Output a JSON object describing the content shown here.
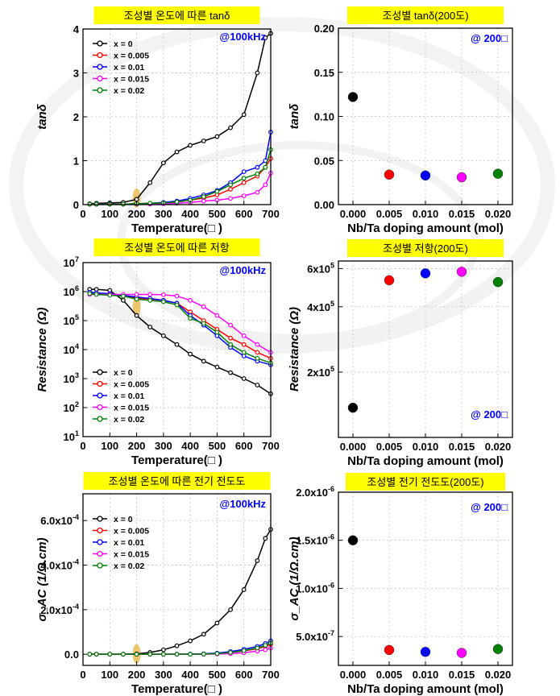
{
  "colors": {
    "x0": "#000000",
    "x005": "#ff0000",
    "x01": "#0000ff",
    "x015": "#ff00ff",
    "x02": "#008000",
    "title_bg": "#ffff00",
    "annot": "#0000ff",
    "highlight": "#e8b84a"
  },
  "chart_data": [
    {
      "type": "line",
      "title": "조성별 온도에 따른 tanδ",
      "annotation": "@100kHz",
      "xlabel": "Temperature(□ )",
      "ylabel": "tanδ",
      "xlim": [
        0,
        700
      ],
      "ylim": [
        0,
        4
      ],
      "xticks": [
        0,
        100,
        200,
        300,
        400,
        500,
        600,
        700
      ],
      "yticks": [
        0,
        1,
        2,
        3,
        4
      ],
      "ytick_labels": [
        "0",
        "1",
        "2",
        "3",
        "4"
      ],
      "yscale": "linear",
      "legend": "top-left",
      "x": [
        25,
        50,
        100,
        150,
        200,
        250,
        300,
        350,
        400,
        450,
        500,
        550,
        600,
        650,
        680,
        700
      ],
      "series": [
        {
          "name": "x = 0",
          "color": "#000000",
          "values": [
            0.02,
            0.03,
            0.04,
            0.05,
            0.12,
            0.5,
            0.95,
            1.2,
            1.35,
            1.45,
            1.55,
            1.75,
            2.05,
            3.0,
            3.8,
            3.9
          ]
        },
        {
          "name": "x = 0.005",
          "color": "#ff0000",
          "values": [
            0.01,
            0.01,
            0.01,
            0.01,
            0.02,
            0.03,
            0.04,
            0.06,
            0.1,
            0.15,
            0.22,
            0.35,
            0.5,
            0.65,
            0.85,
            1.05
          ]
        },
        {
          "name": "x = 0.01",
          "color": "#0000ff",
          "values": [
            0.01,
            0.01,
            0.01,
            0.01,
            0.02,
            0.03,
            0.05,
            0.08,
            0.14,
            0.22,
            0.32,
            0.5,
            0.75,
            0.85,
            1.0,
            1.65
          ]
        },
        {
          "name": "x = 0.015",
          "color": "#ff00ff",
          "values": [
            0.01,
            0.01,
            0.01,
            0.01,
            0.01,
            0.01,
            0.02,
            0.03,
            0.05,
            0.08,
            0.1,
            0.14,
            0.2,
            0.28,
            0.45,
            0.72
          ]
        },
        {
          "name": "x = 0.02",
          "color": "#008000",
          "values": [
            0.01,
            0.01,
            0.01,
            0.01,
            0.02,
            0.03,
            0.04,
            0.06,
            0.1,
            0.18,
            0.3,
            0.45,
            0.6,
            0.7,
            0.85,
            1.25
          ]
        }
      ]
    },
    {
      "type": "scatter",
      "title": "조성별 tanδ(200도)",
      "annotation": "@ 200□",
      "xlabel": "Nb/Ta doping amount (mol)",
      "ylabel": "tanδ",
      "xlim": [
        -0.002,
        0.022
      ],
      "ylim": [
        0,
        0.2
      ],
      "xticks": [
        0,
        0.005,
        0.01,
        0.015,
        0.02
      ],
      "xtick_labels": [
        "0.000",
        "0.005",
        "0.010",
        "0.015",
        "0.020"
      ],
      "yticks": [
        0,
        0.05,
        0.1,
        0.15,
        0.2
      ],
      "ytick_labels": [
        "0.00",
        "0.05",
        "0.10",
        "0.15",
        "0.20"
      ],
      "yscale": "linear",
      "x": [
        0,
        0.005,
        0.01,
        0.015,
        0.02
      ],
      "values": [
        0.122,
        0.034,
        0.033,
        0.031,
        0.035
      ],
      "colors": [
        "#000000",
        "#ff0000",
        "#0000ff",
        "#ff00ff",
        "#008000"
      ]
    },
    {
      "type": "line",
      "title": "조성별 온도에 따른 저항",
      "annotation": "@100kHz",
      "xlabel": "Temperature(□ )",
      "ylabel": "Resistance (Ω)",
      "xlim": [
        0,
        700
      ],
      "ylim": [
        10,
        10000000
      ],
      "xticks": [
        0,
        100,
        200,
        300,
        400,
        500,
        600,
        700
      ],
      "yticks": [
        10,
        100,
        1000,
        10000,
        100000,
        1000000,
        10000000
      ],
      "ytick_labels": [
        "10^1",
        "10^2",
        "10^3",
        "10^4",
        "10^5",
        "10^6",
        "10^7"
      ],
      "yscale": "log",
      "legend": "bottom-left",
      "x": [
        25,
        50,
        100,
        150,
        200,
        250,
        300,
        350,
        400,
        450,
        500,
        550,
        600,
        650,
        700
      ],
      "series": [
        {
          "name": "x = 0",
          "color": "#000000",
          "values": [
            1200000,
            1200000,
            1100000,
            500000,
            150000,
            60000,
            30000,
            15000,
            7000,
            4000,
            2500,
            1600,
            1000,
            600,
            300
          ]
        },
        {
          "name": "x = 0.005",
          "color": "#ff0000",
          "values": [
            900000,
            850000,
            800000,
            700000,
            600000,
            550000,
            500000,
            400000,
            200000,
            100000,
            50000,
            25000,
            15000,
            8000,
            5000
          ]
        },
        {
          "name": "x = 0.01",
          "color": "#0000ff",
          "values": [
            950000,
            900000,
            850000,
            750000,
            650000,
            580000,
            500000,
            400000,
            150000,
            70000,
            30000,
            12000,
            6000,
            4000,
            3000
          ]
        },
        {
          "name": "x = 0.015",
          "color": "#ff00ff",
          "values": [
            800000,
            800000,
            800000,
            800000,
            800000,
            800000,
            780000,
            700000,
            500000,
            300000,
            150000,
            70000,
            30000,
            15000,
            8000
          ]
        },
        {
          "name": "x = 0.02",
          "color": "#008000",
          "values": [
            850000,
            800000,
            750000,
            700000,
            550000,
            500000,
            450000,
            350000,
            120000,
            80000,
            40000,
            15000,
            8000,
            5000,
            3500
          ]
        }
      ]
    },
    {
      "type": "scatter",
      "title": "조성별 저항(200도)",
      "annotation": "@ 200□",
      "xlabel": "Nb/Ta doping amount (mol)",
      "ylabel": "Resistance (Ω)",
      "xlim": [
        -0.002,
        0.022
      ],
      "ylim": [
        100000,
        650000
      ],
      "xticks": [
        0,
        0.005,
        0.01,
        0.015,
        0.02
      ],
      "xtick_labels": [
        "0.000",
        "0.005",
        "0.010",
        "0.015",
        "0.020"
      ],
      "yticks": [
        200000,
        400000,
        600000
      ],
      "ytick_labels": [
        "2x10^5",
        "4x10^5",
        "6x10^5"
      ],
      "yscale": "log",
      "x": [
        0,
        0.005,
        0.01,
        0.015,
        0.02
      ],
      "values": [
        137000,
        530000,
        570000,
        580000,
        520000
      ],
      "colors": [
        "#000000",
        "#ff0000",
        "#0000ff",
        "#ff00ff",
        "#008000"
      ]
    },
    {
      "type": "line",
      "title": "조성별 온도에 따른 전기 전도도",
      "annotation": "@100kHz",
      "xlabel": "Temperature(□ )",
      "ylabel": "σ_AC (1/Ω.cm)",
      "xlim": [
        0,
        700
      ],
      "ylim": [
        -5e-05,
        0.00072
      ],
      "xticks": [
        0,
        100,
        200,
        300,
        400,
        500,
        600,
        700
      ],
      "yticks": [
        0,
        0.0002,
        0.0004,
        0.0006
      ],
      "ytick_labels": [
        "0.0",
        "2.0x10^-4",
        "4.0x10^-4",
        "6.0x10^-4"
      ],
      "yscale": "linear",
      "legend": "top-left",
      "x": [
        25,
        50,
        100,
        150,
        200,
        250,
        300,
        350,
        400,
        450,
        500,
        550,
        600,
        650,
        680,
        700
      ],
      "series": [
        {
          "name": "x = 0",
          "color": "#000000",
          "values": [
            0,
            0,
            0,
            0,
            2e-06,
            8e-06,
            2e-05,
            3.8e-05,
            6e-05,
            9e-05,
            0.00014,
            0.0002,
            0.00029,
            0.00042,
            0.00052,
            0.00056
          ]
        },
        {
          "name": "x = 0.005",
          "color": "#ff0000",
          "values": [
            0,
            0,
            0,
            0,
            0,
            0,
            0,
            0,
            0,
            2e-06,
            4e-06,
            8e-06,
            1.5e-05,
            2.5e-05,
            3.5e-05,
            4.5e-05
          ]
        },
        {
          "name": "x = 0.01",
          "color": "#0000ff",
          "values": [
            0,
            0,
            0,
            0,
            0,
            0,
            0,
            0,
            1e-06,
            2e-06,
            5e-06,
            1.2e-05,
            2.2e-05,
            3.5e-05,
            4.8e-05,
            6e-05
          ]
        },
        {
          "name": "x = 0.015",
          "color": "#ff00ff",
          "values": [
            0,
            0,
            0,
            0,
            0,
            0,
            0,
            0,
            0,
            0,
            1e-06,
            3e-06,
            7e-06,
            1.4e-05,
            2e-05,
            2.8e-05
          ]
        },
        {
          "name": "x = 0.02",
          "color": "#008000",
          "values": [
            0,
            0,
            0,
            0,
            0,
            0,
            0,
            0,
            0,
            1e-06,
            3e-06,
            8e-06,
            1.6e-05,
            2.8e-05,
            4e-05,
            5e-05
          ]
        }
      ]
    },
    {
      "type": "scatter",
      "title": "조성별 전기 전도도(200도)",
      "annotation": "@ 200□",
      "xlabel": "Nb/Ta doping amount (mol)",
      "ylabel": "σ_AC (1/Ω.cm)",
      "xlim": [
        -0.002,
        0.022
      ],
      "ylim": [
        2e-07,
        2e-06
      ],
      "xticks": [
        0,
        0.005,
        0.01,
        0.015,
        0.02
      ],
      "xtick_labels": [
        "0.000",
        "0.005",
        "0.010",
        "0.015",
        "0.020"
      ],
      "yticks": [
        5e-07,
        1e-06,
        1.5e-06,
        2e-06
      ],
      "ytick_labels": [
        "5.0x10^-7",
        "1.0x10^-6",
        "1.5x10^-6",
        "2.0x10^-6"
      ],
      "yscale": "linear",
      "x": [
        0,
        0.005,
        0.01,
        0.015,
        0.02
      ],
      "values": [
        1.5e-06,
        3.6e-07,
        3.4e-07,
        3.3e-07,
        3.7e-07
      ],
      "colors": [
        "#000000",
        "#ff0000",
        "#0000ff",
        "#ff00ff",
        "#008000"
      ]
    }
  ]
}
